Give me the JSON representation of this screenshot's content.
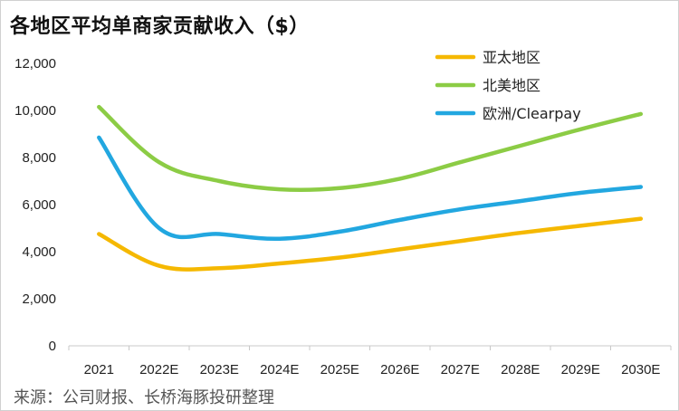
{
  "title": "各地区平均单商家贡献收入（$）",
  "source": "来源：公司财报、长桥海豚投研整理",
  "chart_data": {
    "type": "line",
    "title": "各地区平均单商家贡献收入（$）",
    "xlabel": "",
    "ylabel": "",
    "categories": [
      "2021",
      "2022E",
      "2023E",
      "2024E",
      "2025E",
      "2026E",
      "2027E",
      "2028E",
      "2029E",
      "2030E"
    ],
    "ylim": [
      0,
      12000
    ],
    "yticks": [
      0,
      2000,
      4000,
      6000,
      8000,
      10000,
      12000
    ],
    "ytick_labels": [
      "0",
      "2,000",
      "4,000",
      "6,000",
      "8,000",
      "10,000",
      "12,000"
    ],
    "grid": false,
    "legend_position": "top-right",
    "series": [
      {
        "name": "亚太地区",
        "color": "#f5b800",
        "values": [
          4750,
          3400,
          3300,
          3500,
          3750,
          4100,
          4450,
          4800,
          5100,
          5400
        ]
      },
      {
        "name": "北美地区",
        "color": "#8ccc45",
        "values": [
          10150,
          7800,
          7000,
          6650,
          6700,
          7100,
          7800,
          8500,
          9200,
          9850
        ]
      },
      {
        "name": "欧洲/Clearpay",
        "color": "#22a7e0",
        "values": [
          8850,
          5000,
          4750,
          4550,
          4850,
          5350,
          5800,
          6150,
          6500,
          6750
        ]
      }
    ]
  }
}
